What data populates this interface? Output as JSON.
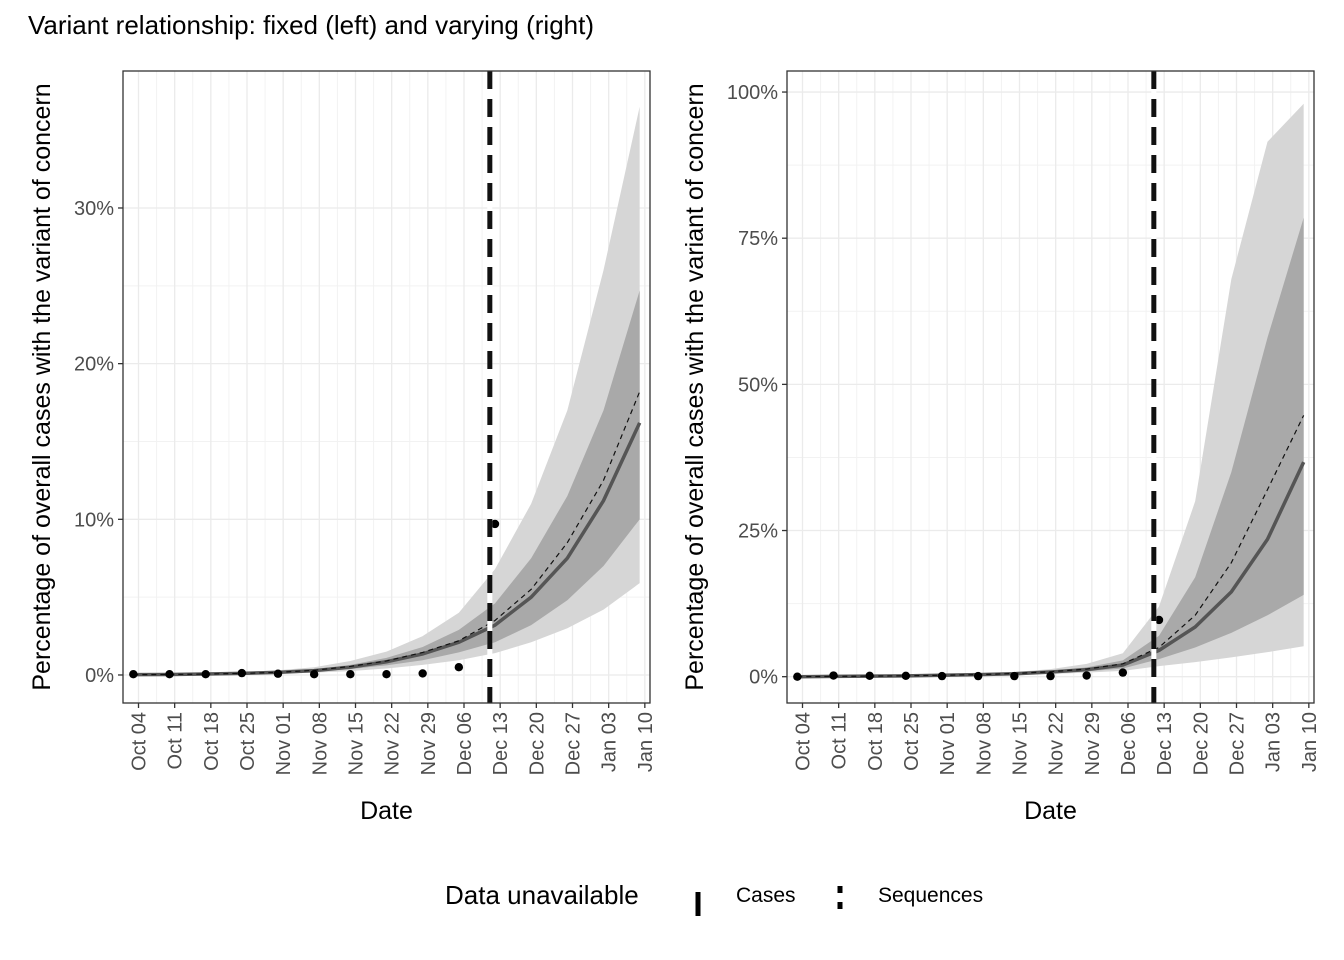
{
  "title": "Variant relationship: fixed (left) and varying (right)",
  "chart_data": [
    {
      "type": "line",
      "panel": "fixed (left)",
      "xlabel": "Date",
      "ylabel": "Percentage of overall cases with the variant of concern",
      "x_ticks": [
        "Oct 04",
        "Oct 11",
        "Oct 18",
        "Oct 25",
        "Nov 01",
        "Nov 08",
        "Nov 15",
        "Nov 22",
        "Nov 29",
        "Dec 06",
        "Dec 13",
        "Dec 20",
        "Dec 27",
        "Jan 03",
        "Jan 10"
      ],
      "y_ticks": [
        "0%",
        "10%",
        "20%",
        "30%"
      ],
      "ylim": [
        -1.8,
        38.8
      ],
      "xlim": [
        "Oct 01",
        "Jan 11"
      ],
      "data_unavailable_date": "Dec 11",
      "series": [
        {
          "x": [
            "Oct 03",
            "Oct 10",
            "Oct 17",
            "Oct 24",
            "Oct 31",
            "Nov 07",
            "Nov 14",
            "Nov 21",
            "Nov 28",
            "Dec 05",
            "Dec 12",
            "Dec 19",
            "Dec 26",
            "Jan 02",
            "Jan 09"
          ],
          "values": [
            0.02,
            0.03,
            0.06,
            0.1,
            0.17,
            0.28,
            0.5,
            0.85,
            1.35,
            2.1,
            3.2,
            5.0,
            7.5,
            11.2,
            16.2
          ],
          "lower_50": [
            0.01,
            0.02,
            0.04,
            0.08,
            0.13,
            0.22,
            0.38,
            0.62,
            0.95,
            1.45,
            2.1,
            3.2,
            4.8,
            7.0,
            10.0
          ],
          "upper_50": [
            0.03,
            0.04,
            0.08,
            0.13,
            0.22,
            0.36,
            0.65,
            1.1,
            1.8,
            2.9,
            4.6,
            7.5,
            11.5,
            17.0,
            24.7
          ],
          "lower_90": [
            0.0,
            0.01,
            0.03,
            0.05,
            0.09,
            0.15,
            0.25,
            0.42,
            0.65,
            0.95,
            1.4,
            2.1,
            3.0,
            4.2,
            5.9
          ],
          "upper_90": [
            0.04,
            0.06,
            0.11,
            0.18,
            0.3,
            0.5,
            0.9,
            1.5,
            2.5,
            4.0,
            6.8,
            11.0,
            17.0,
            26.0,
            36.5
          ]
        },
        {
          "x": [
            "Oct 03",
            "Oct 10",
            "Oct 17",
            "Oct 24",
            "Oct 31",
            "Nov 07",
            "Nov 14",
            "Nov 21",
            "Nov 28",
            "Dec 05",
            "Dec 12",
            "Dec 19",
            "Dec 26",
            "Jan 02",
            "Jan 09"
          ],
          "values": [
            0.02,
            0.03,
            0.06,
            0.1,
            0.17,
            0.3,
            0.55,
            0.9,
            1.45,
            2.2,
            3.5,
            5.5,
            8.5,
            12.5,
            18.2
          ]
        },
        {
          "x": [
            "Oct 03",
            "Oct 10",
            "Oct 17",
            "Oct 24",
            "Oct 31",
            "Nov 07",
            "Nov 14",
            "Nov 21",
            "Nov 28",
            "Dec 05",
            "Dec 12"
          ],
          "values": [
            0.05,
            0.05,
            0.05,
            0.12,
            0.08,
            0.05,
            0.05,
            0.05,
            0.1,
            0.5,
            9.7
          ]
        }
      ]
    },
    {
      "type": "line",
      "panel": "varying (right)",
      "xlabel": "Date",
      "ylabel": "Percentage of overall cases with the variant of concern",
      "x_ticks": [
        "Oct 04",
        "Oct 11",
        "Oct 18",
        "Oct 25",
        "Nov 01",
        "Nov 08",
        "Nov 15",
        "Nov 22",
        "Nov 29",
        "Dec 06",
        "Dec 13",
        "Dec 20",
        "Dec 27",
        "Jan 03",
        "Jan 10"
      ],
      "y_ticks": [
        "0%",
        "25%",
        "50%",
        "75%",
        "100%"
      ],
      "ylim": [
        -4.5,
        103.6
      ],
      "xlim": [
        "Oct 01",
        "Jan 11"
      ],
      "data_unavailable_date": "Dec 11",
      "series": [
        {
          "x": [
            "Oct 03",
            "Oct 10",
            "Oct 17",
            "Oct 24",
            "Oct 31",
            "Nov 07",
            "Nov 14",
            "Nov 21",
            "Nov 28",
            "Dec 05",
            "Dec 12",
            "Dec 19",
            "Dec 26",
            "Jan 02",
            "Jan 09"
          ],
          "values": [
            0.0,
            0.05,
            0.1,
            0.15,
            0.25,
            0.35,
            0.5,
            0.8,
            1.2,
            2.0,
            4.5,
            8.5,
            14.5,
            23.5,
            36.7
          ],
          "lower_50": [
            0.0,
            0.04,
            0.08,
            0.12,
            0.2,
            0.28,
            0.4,
            0.6,
            0.9,
            1.4,
            3.0,
            5.0,
            7.5,
            10.5,
            14.0
          ],
          "upper_50": [
            0.0,
            0.06,
            0.12,
            0.18,
            0.3,
            0.45,
            0.65,
            1.0,
            1.6,
            2.8,
            7.0,
            17.0,
            35.0,
            58.0,
            78.5
          ],
          "lower_90": [
            0.0,
            0.03,
            0.06,
            0.1,
            0.15,
            0.2,
            0.3,
            0.45,
            0.7,
            1.0,
            1.8,
            2.5,
            3.3,
            4.2,
            5.2
          ],
          "upper_90": [
            0.0,
            0.08,
            0.15,
            0.22,
            0.35,
            0.55,
            0.8,
            1.3,
            2.2,
            4.0,
            12.0,
            30.0,
            68.0,
            91.5,
            98.0
          ]
        },
        {
          "x": [
            "Oct 03",
            "Oct 10",
            "Oct 17",
            "Oct 24",
            "Oct 31",
            "Nov 07",
            "Nov 14",
            "Nov 21",
            "Nov 28",
            "Dec 05",
            "Dec 12",
            "Dec 19",
            "Dec 26",
            "Jan 02",
            "Jan 09"
          ],
          "values": [
            0.0,
            0.05,
            0.1,
            0.15,
            0.25,
            0.35,
            0.55,
            0.85,
            1.3,
            2.2,
            5.0,
            10.5,
            19.5,
            32.0,
            44.7
          ]
        },
        {
          "x": [
            "Oct 03",
            "Oct 10",
            "Oct 17",
            "Oct 24",
            "Oct 31",
            "Nov 07",
            "Nov 14",
            "Nov 21",
            "Nov 28",
            "Dec 05",
            "Dec 12"
          ],
          "values": [
            0.0,
            0.2,
            0.15,
            0.15,
            0.1,
            0.1,
            0.1,
            0.1,
            0.2,
            0.7,
            9.7
          ]
        }
      ]
    }
  ],
  "legend": {
    "title": "Data unavailable",
    "items": [
      {
        "label": "Cases",
        "linetype": "solid"
      },
      {
        "label": "Sequences",
        "linetype": "dashed"
      }
    ]
  }
}
